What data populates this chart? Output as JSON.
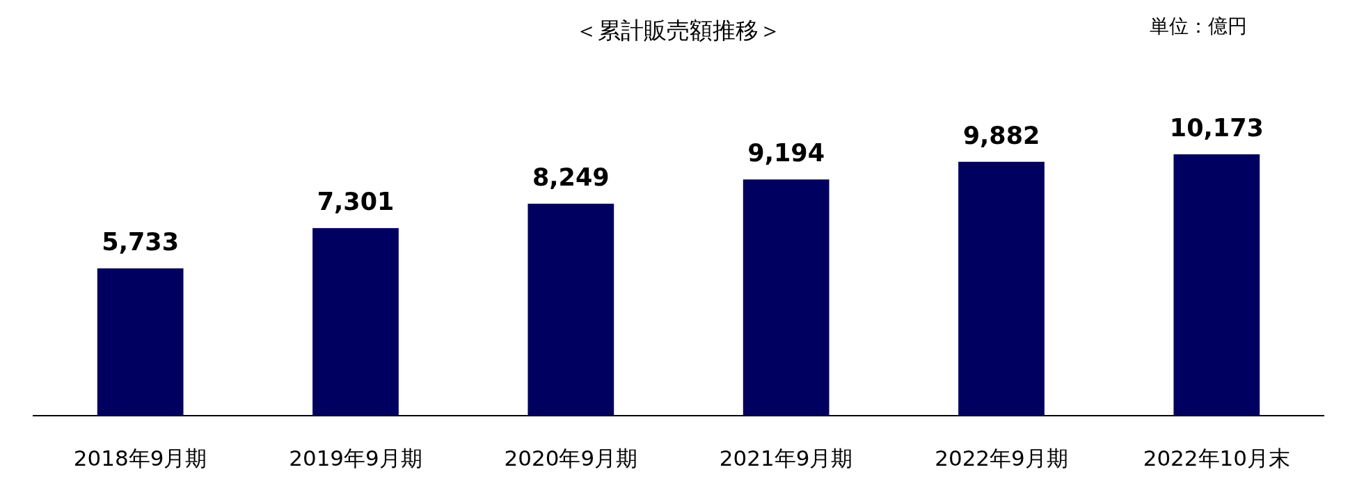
{
  "chart_data": {
    "type": "bar",
    "title": "＜累計販売額推移＞",
    "annotations": [
      "単位：億円"
    ],
    "categories": [
      "2018年9月期",
      "2019年9月期",
      "2020年9月期",
      "2021年9月期",
      "2022年9月期",
      "2022年10月末"
    ],
    "values": [
      5733,
      7301,
      8249,
      9194,
      9882,
      10173
    ],
    "value_labels": [
      "5,733",
      "7,301",
      "8,249",
      "9,194",
      "9,882",
      "10,173"
    ],
    "color": "#000060"
  }
}
